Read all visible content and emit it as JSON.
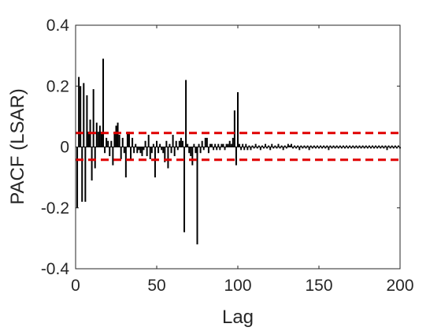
{
  "chart_data": {
    "type": "bar",
    "title": "",
    "xlabel": "Lag",
    "ylabel": "PACF (LSAR)",
    "xlim": [
      0,
      200
    ],
    "ylim": [
      -0.4,
      0.4
    ],
    "xticks": [
      {
        "value": 0,
        "label": "0"
      },
      {
        "value": 50,
        "label": "50"
      },
      {
        "value": 100,
        "label": "100"
      },
      {
        "value": 150,
        "label": "150"
      },
      {
        "value": 200,
        "label": "200"
      }
    ],
    "yticks": [
      {
        "value": -0.4,
        "label": "-0.4"
      },
      {
        "value": -0.2,
        "label": "-0.2"
      },
      {
        "value": 0,
        "label": "0"
      },
      {
        "value": 0.2,
        "label": "0.2"
      },
      {
        "value": 0.4,
        "label": "0.4"
      }
    ],
    "grid": false,
    "box": true,
    "stem_color": "#000000",
    "confidence_bounds": {
      "upper": 0.046,
      "lower": -0.042,
      "color": "#e00000",
      "style": "dashed"
    },
    "lags": [
      1,
      2,
      3,
      4,
      5,
      6,
      7,
      8,
      9,
      10,
      11,
      12,
      13,
      14,
      15,
      16,
      17,
      18,
      19,
      20,
      21,
      22,
      23,
      24,
      25,
      26,
      27,
      28,
      29,
      30,
      31,
      32,
      33,
      34,
      35,
      36,
      37,
      38,
      39,
      40,
      41,
      42,
      43,
      44,
      45,
      46,
      47,
      48,
      49,
      50,
      51,
      52,
      53,
      54,
      55,
      56,
      57,
      58,
      59,
      60,
      61,
      62,
      63,
      64,
      65,
      66,
      67,
      68,
      69,
      70,
      71,
      72,
      73,
      74,
      75,
      76,
      77,
      78,
      79,
      80,
      81,
      82,
      83,
      84,
      85,
      86,
      87,
      88,
      89,
      90,
      91,
      92,
      93,
      94,
      95,
      96,
      97,
      98,
      99,
      100,
      101,
      102,
      103,
      104,
      105,
      106,
      107,
      108,
      109,
      110,
      111,
      112,
      113,
      114,
      115,
      116,
      117,
      118,
      119,
      120,
      121,
      122,
      123,
      124,
      125,
      126,
      127,
      128,
      129,
      130,
      131,
      132,
      133,
      134,
      135,
      136,
      137,
      138,
      139,
      140,
      141,
      142,
      143,
      144,
      145,
      146,
      147,
      148,
      149,
      150,
      151,
      152,
      153,
      154,
      155,
      156,
      157,
      158,
      159,
      160,
      161,
      162,
      163,
      164,
      165,
      166,
      167,
      168,
      169,
      170,
      171,
      172,
      173,
      174,
      175,
      176,
      177,
      178,
      179,
      180,
      181,
      182,
      183,
      184,
      185,
      186,
      187,
      188,
      189,
      190,
      191,
      192,
      193,
      194,
      195,
      196,
      197,
      198,
      199,
      200
    ],
    "values": [
      -0.2,
      0.23,
      0.2,
      -0.18,
      0.21,
      -0.18,
      0.17,
      0.05,
      0.09,
      -0.11,
      0.19,
      -0.07,
      0.08,
      0.05,
      0.07,
      0.05,
      0.29,
      -0.02,
      0.03,
      0.02,
      -0.03,
      0.02,
      -0.06,
      0.05,
      0.07,
      0.08,
      0.04,
      -0.04,
      0.03,
      -0.02,
      -0.1,
      0.05,
      0.05,
      -0.04,
      0.03,
      -0.02,
      0.01,
      -0.02,
      -0.01,
      -0.02,
      -0.03,
      -0.01,
      0.02,
      -0.03,
      0.04,
      -0.04,
      -0.02,
      0.01,
      -0.1,
      0.02,
      -0.02,
      0.01,
      -0.01,
      -0.02,
      -0.05,
      0.02,
      -0.07,
      0.01,
      -0.02,
      0.04,
      -0.03,
      0.02,
      -0.01,
      0.02,
      0.03,
      0.02,
      -0.28,
      0.22,
      0.01,
      -0.02,
      -0.03,
      -0.06,
      0.01,
      -0.02,
      -0.32,
      0.01,
      -0.02,
      0.02,
      -0.01,
      0.03,
      0.03,
      -0.02,
      0.01,
      0.01,
      -0.01,
      0.01,
      -0.01,
      0.01,
      -0.01,
      0.01,
      0.01,
      -0.01,
      0.01,
      0.01,
      0.02,
      0.01,
      0.03,
      0.12,
      -0.06,
      0.18,
      0.01,
      -0.01,
      0.01,
      -0.01,
      0.01,
      -0.01,
      0.005,
      -0.01,
      0.005,
      -0.005,
      0.01,
      -0.005,
      0.005,
      -0.01,
      0.005,
      -0.005,
      0.01,
      -0.005,
      0.005,
      -0.01,
      0.01,
      -0.005,
      0.005,
      -0.005,
      0.01,
      -0.005,
      0.005,
      -0.01,
      0.005,
      -0.005,
      0.01,
      0.005,
      0.01,
      -0.005,
      0.005,
      -0.005,
      0.005,
      -0.01,
      0.005,
      -0.005,
      0.005,
      -0.005,
      0.005,
      -0.01,
      0.005,
      -0.005,
      0.005,
      -0.005,
      0.005,
      -0.005,
      0.005,
      -0.005,
      0.005,
      -0.005,
      0.005,
      -0.01,
      0.005,
      -0.005,
      0.005,
      -0.005,
      0.005,
      -0.005,
      0.005,
      -0.005,
      0.005,
      -0.005,
      0.005,
      -0.005,
      0.005,
      -0.005,
      0.005,
      -0.005,
      0.005,
      -0.005,
      0.005,
      -0.005,
      0.005,
      -0.005,
      0.005,
      -0.005,
      0.005,
      -0.005,
      0.005,
      -0.005,
      0.005,
      -0.005,
      0.005,
      -0.005,
      0.005,
      -0.005,
      0.005,
      -0.01,
      0.005,
      -0.005,
      0.005,
      -0.005,
      0.005,
      -0.005,
      0.005,
      -0.005,
      0.005,
      -0.005
    ]
  }
}
